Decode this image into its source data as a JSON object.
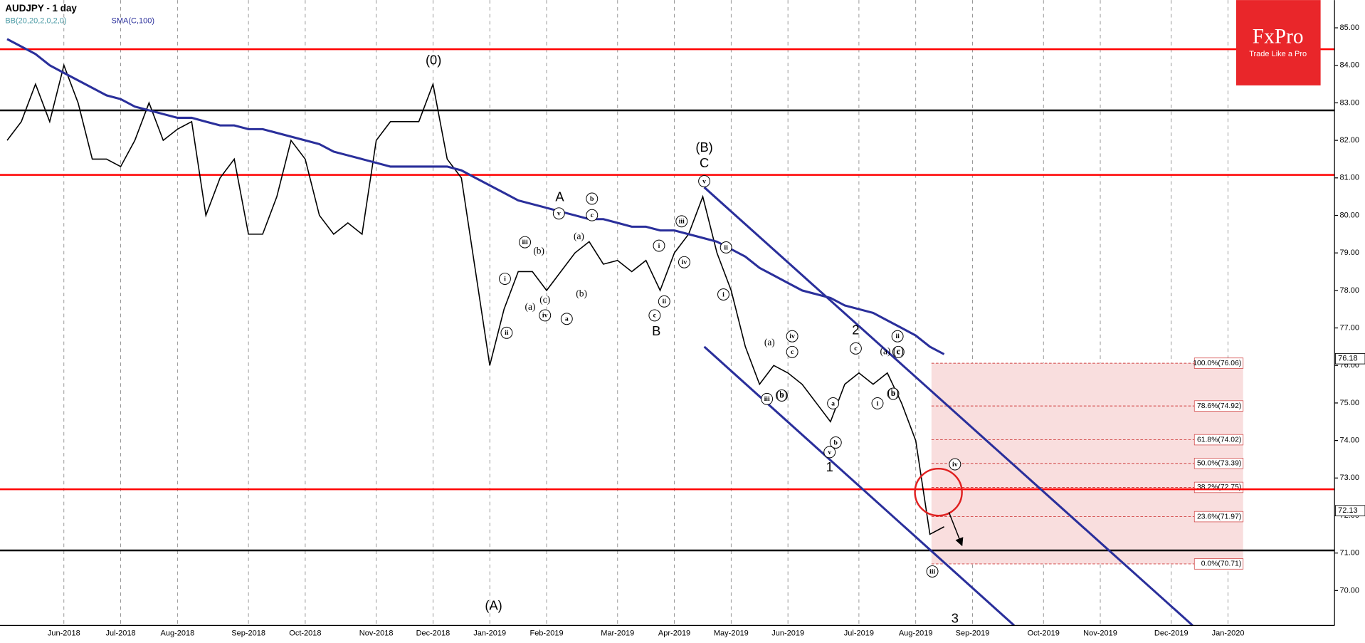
{
  "chart_data": {
    "type": "line",
    "title": "AUDJPY - 1 day",
    "indicators": [
      "BB(20,20,2,0,2,0)",
      "SMA(C,100)"
    ],
    "categories": [
      null,
      null,
      null,
      null,
      "Jun-2018",
      null,
      null,
      null,
      "Jul-2018",
      null,
      null,
      null,
      "Aug-2018",
      null,
      null,
      null,
      null,
      "Sep-2018",
      null,
      null,
      null,
      "Oct-2018",
      null,
      null,
      null,
      null,
      "Nov-2018",
      null,
      null,
      null,
      "Dec-2018",
      null,
      null,
      null,
      "Jan-2019",
      null,
      null,
      null,
      "Feb-2019",
      null,
      null,
      null,
      null,
      "Mar-2019",
      null,
      null,
      null,
      "Apr-2019",
      null,
      null,
      null,
      "May-2019",
      null,
      null,
      null,
      "Jun-2019",
      null,
      null,
      null,
      null,
      "Jul-2019",
      null,
      null,
      null,
      "Aug-2019",
      null,
      null,
      null,
      "Sep-2019",
      null,
      null,
      null,
      null,
      "Oct-2019",
      null,
      null,
      null,
      "Nov-2019",
      null,
      null,
      null,
      null,
      "Dec-2019",
      null,
      null,
      null,
      "Jan-2020",
      null,
      null,
      null,
      null,
      null,
      null,
      null
    ],
    "series": [
      {
        "name": "AUDJPY",
        "color": "#000000",
        "values": [
          82.0,
          82.5,
          83.5,
          82.5,
          84.0,
          83.0,
          81.5,
          81.5,
          81.3,
          82.0,
          83.0,
          82.0,
          82.3,
          82.5,
          80.0,
          81.0,
          81.5,
          79.5,
          79.5,
          80.5,
          82.0,
          81.5,
          80.0,
          79.5,
          79.8,
          79.5,
          82.0,
          82.5,
          82.5,
          82.5,
          83.5,
          81.5,
          81.0,
          78.5,
          76.0,
          77.5,
          78.5,
          78.5,
          78.0,
          78.5,
          79.0,
          79.3,
          78.7,
          78.8,
          78.5,
          78.8,
          78.0,
          79.0,
          79.5,
          80.5,
          79.0,
          78.0,
          76.5,
          75.5,
          76.0,
          75.8,
          75.5,
          75.0,
          74.5,
          75.5,
          75.8,
          75.5,
          75.8,
          75.0,
          74.0,
          71.5,
          71.7,
          null,
          null,
          null,
          null,
          null,
          null,
          null,
          null,
          null,
          null,
          null,
          null,
          null,
          null,
          null,
          null,
          null,
          null,
          null,
          null,
          null,
          null,
          null,
          null,
          null,
          null,
          null
        ]
      },
      {
        "name": "SMA(C,100)",
        "color": "#2a2f9b",
        "values": [
          84.7,
          84.5,
          84.3,
          84.0,
          83.8,
          83.6,
          83.4,
          83.2,
          83.1,
          82.9,
          82.8,
          82.7,
          82.6,
          82.6,
          82.5,
          82.4,
          82.4,
          82.3,
          82.3,
          82.2,
          82.1,
          82.0,
          81.9,
          81.7,
          81.6,
          81.5,
          81.4,
          81.3,
          81.3,
          81.3,
          81.3,
          81.3,
          81.2,
          81.0,
          80.8,
          80.6,
          80.4,
          80.3,
          80.2,
          80.1,
          80.0,
          79.9,
          79.9,
          79.8,
          79.7,
          79.7,
          79.6,
          79.6,
          79.5,
          79.4,
          79.3,
          79.1,
          78.9,
          78.6,
          78.4,
          78.2,
          78.0,
          77.9,
          77.8,
          77.6,
          77.5,
          77.4,
          77.2,
          77.0,
          76.8,
          76.5,
          76.3,
          null,
          null,
          null,
          null,
          null,
          null,
          null,
          null,
          null,
          null,
          null,
          null,
          null,
          null,
          null,
          null,
          null,
          null,
          null,
          null,
          null,
          null,
          null,
          null,
          null,
          null,
          null
        ]
      }
    ],
    "ylim": [
      69.07,
      85.74
    ],
    "yticks": [
      {
        "value": 70,
        "label": "70.00"
      },
      {
        "value": 71,
        "label": "71.00"
      },
      {
        "value": 72,
        "label": "72.00"
      },
      {
        "value": 73,
        "label": "73.00"
      },
      {
        "value": 74,
        "label": "74.00"
      },
      {
        "value": 75,
        "label": "75.00"
      },
      {
        "value": 76,
        "label": "76.00"
      },
      {
        "value": 77,
        "label": "77.00"
      },
      {
        "value": 78,
        "label": "78.00"
      },
      {
        "value": 79,
        "label": "79.00"
      },
      {
        "value": 80,
        "label": "80.00"
      },
      {
        "value": 81,
        "label": "81.00"
      },
      {
        "value": 82,
        "label": "82.00"
      },
      {
        "value": 83,
        "label": "83.00"
      },
      {
        "value": 84,
        "label": "84.00"
      },
      {
        "value": 85,
        "label": "85.00"
      }
    ],
    "levels": [
      {
        "value": 84.43,
        "color": "#ff0000"
      },
      {
        "value": 82.8,
        "color": "#000000"
      },
      {
        "value": 81.08,
        "color": "#ff0000"
      },
      {
        "value": 72.7,
        "color": "#ff0000"
      },
      {
        "value": 71.07,
        "color": "#000000"
      }
    ],
    "fib_levels": [
      {
        "value": 76.06,
        "label": "100.0%(76.06)"
      },
      {
        "value": 74.92,
        "label": "78.6%(74.92)"
      },
      {
        "value": 74.02,
        "label": "61.8%(74.02)"
      },
      {
        "value": 73.39,
        "label": "50.0%(73.39)"
      },
      {
        "value": 72.75,
        "label": "38.2%(72.75)"
      },
      {
        "value": 71.97,
        "label": "23.6%(71.97)"
      },
      {
        "value": 70.71,
        "label": "0.0%(70.71)"
      }
    ],
    "price_tags": [
      {
        "value": 76.18,
        "label": "76.18"
      },
      {
        "value": 72.13,
        "label": "72.13"
      }
    ],
    "wave_labels": [
      "(0)",
      "(B)",
      "C",
      "A",
      "B",
      "(A)",
      "1",
      "2",
      "3",
      "v",
      "v",
      "iii",
      "i",
      "ii",
      "iv",
      "a",
      "b",
      "c",
      "iii",
      "i",
      "ii",
      "iv",
      "c",
      "ii",
      "i",
      "iv",
      "c",
      "iii",
      "b",
      "a",
      "b",
      "v",
      "c",
      "i",
      "ii",
      "c",
      "b",
      "iii",
      "iv",
      "(a)",
      "(c)",
      "(b)",
      "(a)",
      "(b)",
      "(a)",
      "(b)",
      "(a)",
      "(c)",
      "(b)"
    ],
    "brand": {
      "name": "FxPro",
      "slogan": "Trade Like a Pro"
    }
  }
}
